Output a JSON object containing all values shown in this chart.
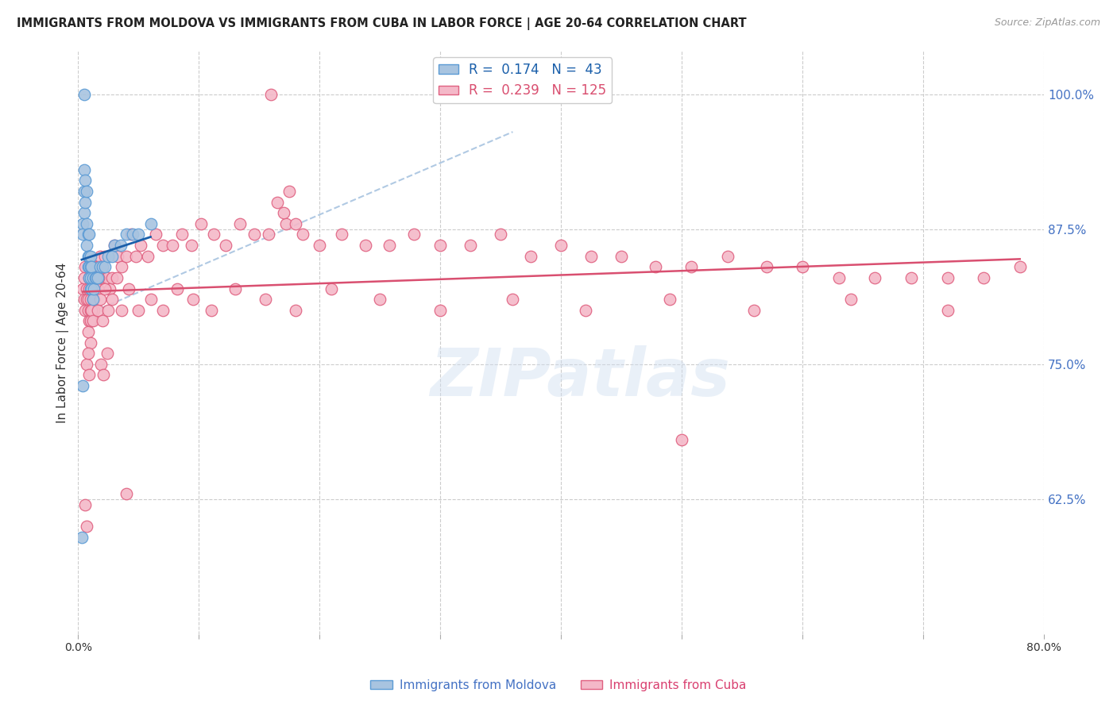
{
  "title": "IMMIGRANTS FROM MOLDOVA VS IMMIGRANTS FROM CUBA IN LABOR FORCE | AGE 20-64 CORRELATION CHART",
  "source": "Source: ZipAtlas.com",
  "ylabel": "In Labor Force | Age 20-64",
  "xlim": [
    0.0,
    0.8
  ],
  "ylim": [
    0.5,
    1.04
  ],
  "yticks_right": [
    0.625,
    0.75,
    0.875,
    1.0
  ],
  "ytick_right_labels": [
    "62.5%",
    "75.0%",
    "87.5%",
    "100.0%"
  ],
  "moldova_color": "#a8c4e0",
  "moldova_edge_color": "#5b9bd5",
  "cuba_color": "#f4b8c8",
  "cuba_edge_color": "#e06080",
  "moldova_line_color": "#1a5faa",
  "cuba_line_color": "#d94f70",
  "dashed_line_color": "#a8c4e0",
  "legend_r_moldova": "0.174",
  "legend_n_moldova": "43",
  "legend_r_cuba": "0.239",
  "legend_n_cuba": "125",
  "watermark": "ZIPatlas",
  "moldova_x": [
    0.004,
    0.004,
    0.005,
    0.005,
    0.005,
    0.006,
    0.006,
    0.007,
    0.007,
    0.007,
    0.008,
    0.008,
    0.008,
    0.009,
    0.009,
    0.009,
    0.009,
    0.01,
    0.01,
    0.01,
    0.01,
    0.011,
    0.011,
    0.012,
    0.012,
    0.013,
    0.014,
    0.015,
    0.016,
    0.018,
    0.02,
    0.022,
    0.025,
    0.028,
    0.03,
    0.035,
    0.04,
    0.045,
    0.05,
    0.06,
    0.004,
    0.005,
    0.003
  ],
  "moldova_y": [
    0.88,
    0.87,
    0.93,
    0.91,
    0.89,
    0.92,
    0.9,
    0.91,
    0.88,
    0.86,
    0.87,
    0.85,
    0.84,
    0.87,
    0.85,
    0.84,
    0.83,
    0.85,
    0.84,
    0.83,
    0.82,
    0.84,
    0.82,
    0.83,
    0.81,
    0.82,
    0.83,
    0.83,
    0.83,
    0.84,
    0.84,
    0.84,
    0.85,
    0.85,
    0.86,
    0.86,
    0.87,
    0.87,
    0.87,
    0.88,
    0.73,
    1.0,
    0.59
  ],
  "cuba_x": [
    0.004,
    0.005,
    0.005,
    0.006,
    0.006,
    0.007,
    0.007,
    0.008,
    0.008,
    0.009,
    0.009,
    0.01,
    0.01,
    0.01,
    0.011,
    0.011,
    0.012,
    0.012,
    0.013,
    0.014,
    0.015,
    0.016,
    0.017,
    0.018,
    0.019,
    0.02,
    0.022,
    0.024,
    0.026,
    0.028,
    0.03,
    0.033,
    0.036,
    0.04,
    0.044,
    0.048,
    0.052,
    0.058,
    0.064,
    0.07,
    0.078,
    0.086,
    0.094,
    0.102,
    0.112,
    0.122,
    0.134,
    0.146,
    0.158,
    0.172,
    0.186,
    0.2,
    0.218,
    0.238,
    0.258,
    0.278,
    0.3,
    0.325,
    0.35,
    0.375,
    0.4,
    0.425,
    0.45,
    0.478,
    0.508,
    0.538,
    0.57,
    0.6,
    0.63,
    0.66,
    0.69,
    0.72,
    0.75,
    0.78,
    0.008,
    0.009,
    0.01,
    0.01,
    0.011,
    0.012,
    0.013,
    0.015,
    0.016,
    0.017,
    0.018,
    0.02,
    0.022,
    0.025,
    0.028,
    0.032,
    0.036,
    0.042,
    0.05,
    0.06,
    0.07,
    0.082,
    0.095,
    0.11,
    0.13,
    0.155,
    0.18,
    0.21,
    0.25,
    0.3,
    0.36,
    0.42,
    0.49,
    0.56,
    0.64,
    0.72,
    0.006,
    0.007,
    0.04,
    0.16,
    0.5,
    0.165,
    0.17,
    0.175,
    0.18,
    0.007,
    0.008,
    0.009,
    0.019,
    0.021,
    0.024
  ],
  "cuba_y": [
    0.82,
    0.83,
    0.81,
    0.84,
    0.8,
    0.82,
    0.81,
    0.81,
    0.8,
    0.83,
    0.79,
    0.82,
    0.81,
    0.8,
    0.83,
    0.79,
    0.81,
    0.8,
    0.8,
    0.82,
    0.84,
    0.82,
    0.84,
    0.85,
    0.83,
    0.84,
    0.85,
    0.83,
    0.82,
    0.83,
    0.86,
    0.85,
    0.84,
    0.85,
    0.87,
    0.85,
    0.86,
    0.85,
    0.87,
    0.86,
    0.86,
    0.87,
    0.86,
    0.88,
    0.87,
    0.86,
    0.88,
    0.87,
    0.87,
    0.88,
    0.87,
    0.86,
    0.87,
    0.86,
    0.86,
    0.87,
    0.86,
    0.86,
    0.87,
    0.85,
    0.86,
    0.85,
    0.85,
    0.84,
    0.84,
    0.85,
    0.84,
    0.84,
    0.83,
    0.83,
    0.83,
    0.83,
    0.83,
    0.84,
    0.78,
    0.82,
    0.79,
    0.77,
    0.8,
    0.79,
    0.81,
    0.83,
    0.8,
    0.83,
    0.81,
    0.79,
    0.82,
    0.8,
    0.81,
    0.83,
    0.8,
    0.82,
    0.8,
    0.81,
    0.8,
    0.82,
    0.81,
    0.8,
    0.82,
    0.81,
    0.8,
    0.82,
    0.81,
    0.8,
    0.81,
    0.8,
    0.81,
    0.8,
    0.81,
    0.8,
    0.62,
    0.6,
    0.63,
    1.0,
    0.68,
    0.9,
    0.89,
    0.91,
    0.88,
    0.75,
    0.76,
    0.74,
    0.75,
    0.74,
    0.76
  ]
}
